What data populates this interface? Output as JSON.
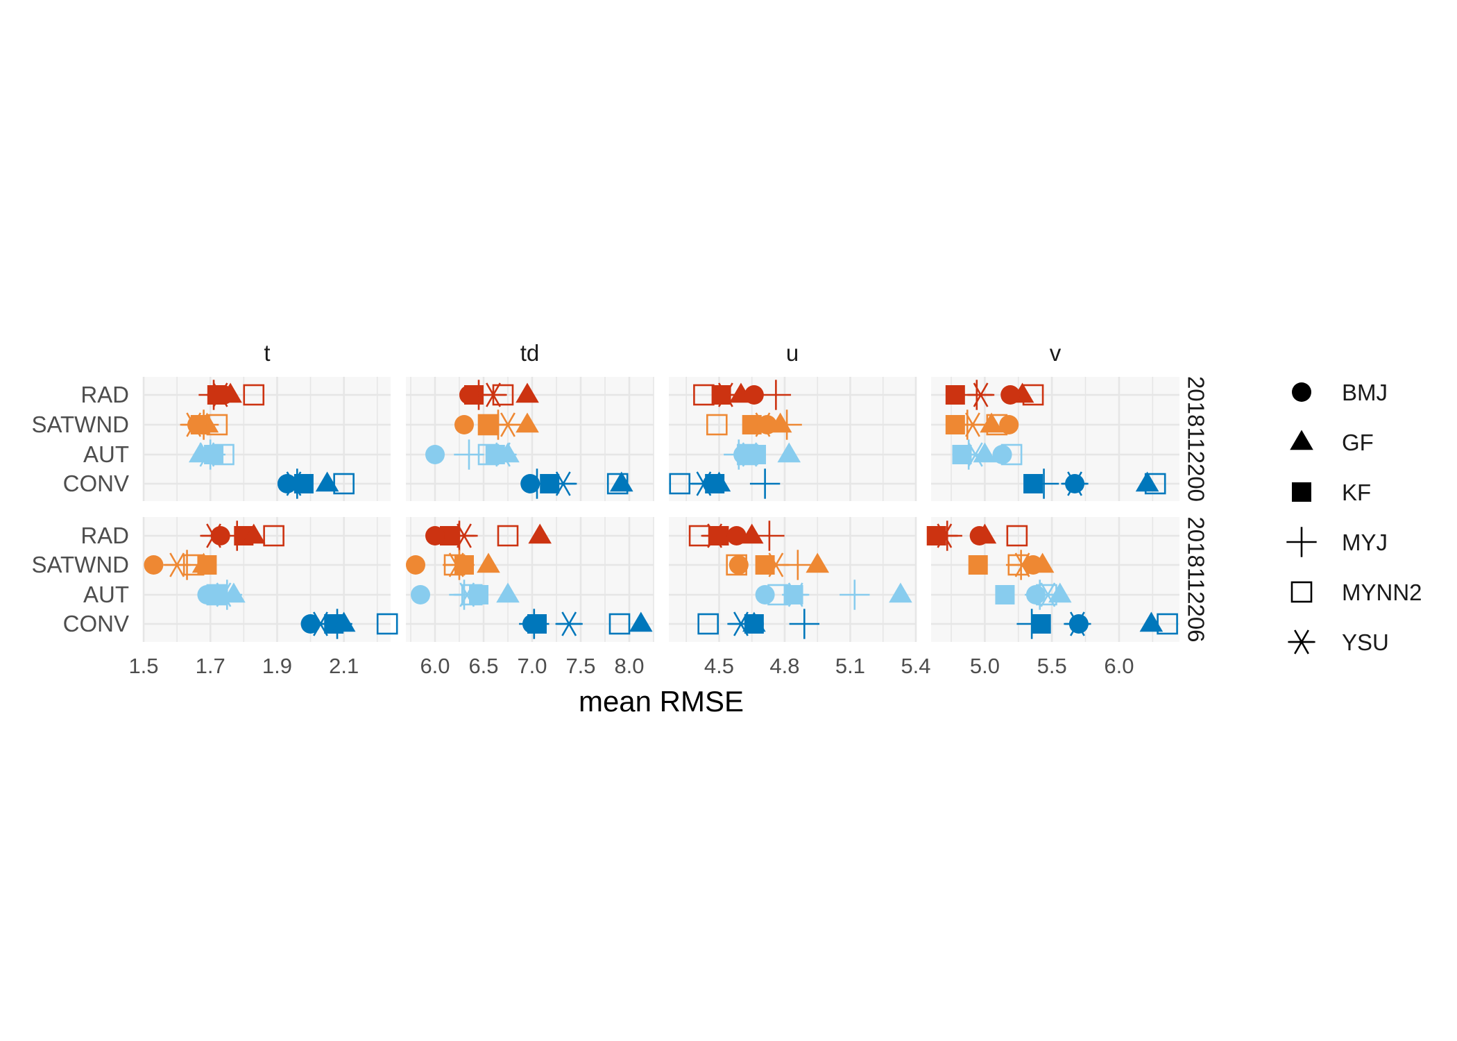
{
  "chart_data": {
    "type": "scatter",
    "xlabel": "mean RMSE",
    "ylabel": "",
    "title": "",
    "grid": true,
    "legend_position": "right",
    "categories": [
      "RAD",
      "SATWND",
      "AUT",
      "CONV"
    ],
    "category_colors": {
      "RAD": "#cc3311",
      "SATWND": "#ee8833",
      "AUT": "#88ccee",
      "CONV": "#0077bb"
    },
    "panel_background": "#f7f7f7",
    "grid_color": "#e6e6e6",
    "columns": [
      {
        "name": "t",
        "xlim": [
          1.5,
          2.24
        ],
        "ticks": [
          1.5,
          1.7,
          1.9,
          2.1
        ],
        "tick_labels": [
          "1.5",
          "1.7",
          "1.9",
          "2.1"
        ]
      },
      {
        "name": "td",
        "xlim": [
          5.7,
          8.25
        ],
        "ticks": [
          6.0,
          6.5,
          7.0,
          7.5,
          8.0
        ],
        "tick_labels": [
          "6.0",
          "6.5",
          "7.0",
          "7.5",
          "8.0"
        ]
      },
      {
        "name": "u",
        "xlim": [
          4.27,
          5.4
        ],
        "ticks": [
          4.5,
          4.8,
          5.1,
          5.4
        ],
        "tick_labels": [
          "4.5",
          "4.8",
          "5.1",
          "5.4"
        ]
      },
      {
        "name": "v",
        "xlim": [
          4.6,
          6.45
        ],
        "ticks": [
          5.0,
          5.5,
          6.0
        ],
        "tick_labels": [
          "5.0",
          "5.5",
          "6.0"
        ]
      }
    ],
    "rows": [
      {
        "name": "2018112200"
      },
      {
        "name": "2018112206"
      }
    ],
    "schemes": [
      "BMJ",
      "GF",
      "KF",
      "MYJ",
      "MYNN2",
      "YSU"
    ],
    "legend": [
      {
        "label": "BMJ",
        "shape": "filled-circle"
      },
      {
        "label": "GF",
        "shape": "filled-triangle"
      },
      {
        "label": "KF",
        "shape": "filled-square"
      },
      {
        "label": "MYJ",
        "shape": "plus"
      },
      {
        "label": "MYNN2",
        "shape": "open-square"
      },
      {
        "label": "YSU",
        "shape": "asterisk"
      }
    ],
    "panels": [
      {
        "column": "t",
        "row": "2018112200",
        "data": {
          "RAD": {
            "BMJ": 1.74,
            "GF": 1.76,
            "KF": 1.72,
            "MYJ": 1.71,
            "MYNN2": 1.83,
            "YSU": 1.73
          },
          "SATWND": {
            "BMJ": 1.66,
            "GF": 1.69,
            "KF": 1.67,
            "MYJ": 1.68,
            "MYNN2": 1.72,
            "YSU": 1.65
          },
          "AUT": {
            "BMJ": 1.71,
            "GF": 1.67,
            "KF": 1.71,
            "MYJ": 1.7,
            "MYNN2": 1.74,
            "YSU": 1.69
          },
          "CONV": {
            "BMJ": 1.93,
            "GF": 2.05,
            "KF": 1.98,
            "MYJ": 1.96,
            "MYNN2": 2.1,
            "YSU": 1.95
          }
        }
      },
      {
        "column": "td",
        "row": "2018112200",
        "data": {
          "RAD": {
            "BMJ": 6.35,
            "GF": 6.95,
            "KF": 6.4,
            "MYJ": 6.45,
            "MYNN2": 6.7,
            "YSU": 6.6
          },
          "SATWND": {
            "BMJ": 6.3,
            "GF": 6.95,
            "KF": 6.55,
            "MYJ": 6.65,
            "MYNN2": 6.55,
            "YSU": 6.75
          },
          "AUT": {
            "BMJ": 6.0,
            "GF": 6.75,
            "KF": 6.62,
            "MYJ": 6.35,
            "MYNN2": 6.55,
            "YSU": 6.7
          },
          "CONV": {
            "BMJ": 6.98,
            "GF": 7.92,
            "KF": 7.18,
            "MYJ": 7.05,
            "MYNN2": 7.88,
            "YSU": 7.32
          }
        }
      },
      {
        "column": "u",
        "row": "2018112200",
        "data": {
          "RAD": {
            "BMJ": 4.66,
            "GF": 4.6,
            "KF": 4.51,
            "MYJ": 4.76,
            "MYNN2": 4.43,
            "YSU": 4.53
          },
          "SATWND": {
            "BMJ": 4.72,
            "GF": 4.78,
            "KF": 4.65,
            "MYJ": 4.81,
            "MYNN2": 4.49,
            "YSU": 4.7
          },
          "AUT": {
            "BMJ": 4.61,
            "GF": 4.82,
            "KF": 4.67,
            "MYJ": 4.59,
            "MYNN2": 4.63,
            "YSU": 4.64
          },
          "CONV": {
            "BMJ": 4.47,
            "GF": 4.5,
            "KF": 4.48,
            "MYJ": 4.71,
            "MYNN2": 4.32,
            "YSU": 4.43
          }
        }
      },
      {
        "column": "v",
        "row": "2018112200",
        "data": {
          "RAD": {
            "BMJ": 5.19,
            "GF": 5.28,
            "KF": 4.78,
            "MYJ": 4.94,
            "MYNN2": 5.36,
            "YSU": 4.97
          },
          "SATWND": {
            "BMJ": 5.18,
            "GF": 5.05,
            "KF": 4.78,
            "MYJ": 4.87,
            "MYNN2": 5.09,
            "YSU": 4.91
          },
          "AUT": {
            "BMJ": 5.13,
            "GF": 5.0,
            "KF": 4.83,
            "MYJ": 4.88,
            "MYNN2": 5.2,
            "YSU": 4.93
          },
          "CONV": {
            "BMJ": 5.67,
            "GF": 6.21,
            "KF": 5.36,
            "MYJ": 5.44,
            "MYNN2": 6.27,
            "YSU": 5.67
          }
        }
      },
      {
        "column": "t",
        "row": "2018112206",
        "data": {
          "RAD": {
            "BMJ": 1.73,
            "GF": 1.83,
            "KF": 1.8,
            "MYJ": 1.78,
            "MYNN2": 1.89,
            "YSU": 1.71
          },
          "SATWND": {
            "BMJ": 1.53,
            "GF": 1.68,
            "KF": 1.69,
            "MYJ": 1.63,
            "MYNN2": 1.65,
            "YSU": 1.6
          },
          "AUT": {
            "BMJ": 1.69,
            "GF": 1.77,
            "KF": 1.72,
            "MYJ": 1.75,
            "MYNN2": 1.72,
            "YSU": 1.74
          },
          "CONV": {
            "BMJ": 2.0,
            "GF": 2.1,
            "KF": 2.07,
            "MYJ": 2.08,
            "MYNN2": 2.23,
            "YSU": 2.03
          }
        }
      },
      {
        "column": "td",
        "row": "2018112206",
        "data": {
          "RAD": {
            "BMJ": 6.0,
            "GF": 7.08,
            "KF": 6.15,
            "MYJ": 6.25,
            "MYNN2": 6.75,
            "YSU": 6.3
          },
          "SATWND": {
            "BMJ": 5.8,
            "GF": 6.55,
            "KF": 6.3,
            "MYJ": 6.25,
            "MYNN2": 6.2,
            "YSU": 6.22
          },
          "AUT": {
            "BMJ": 5.85,
            "GF": 6.75,
            "KF": 6.45,
            "MYJ": 6.3,
            "MYNN2": 6.38,
            "YSU": 6.33
          },
          "CONV": {
            "BMJ": 7.0,
            "GF": 8.12,
            "KF": 7.05,
            "MYJ": 7.02,
            "MYNN2": 7.9,
            "YSU": 7.38
          }
        }
      },
      {
        "column": "u",
        "row": "2018112206",
        "data": {
          "RAD": {
            "BMJ": 4.58,
            "GF": 4.65,
            "KF": 4.5,
            "MYJ": 4.73,
            "MYNN2": 4.41,
            "YSU": 4.48
          },
          "SATWND": {
            "BMJ": 4.59,
            "GF": 4.95,
            "KF": 4.71,
            "MYJ": 4.86,
            "MYNN2": 4.58,
            "YSU": 4.76
          },
          "AUT": {
            "BMJ": 4.71,
            "GF": 5.33,
            "KF": 4.84,
            "MYJ": 5.12,
            "MYNN2": 4.77,
            "YSU": 4.85
          },
          "CONV": {
            "BMJ": 4.66,
            "GF": 4.66,
            "KF": 4.66,
            "MYJ": 4.89,
            "MYNN2": 4.45,
            "YSU": 4.6
          }
        }
      },
      {
        "column": "v",
        "row": "2018112206",
        "data": {
          "RAD": {
            "BMJ": 4.96,
            "GF": 5.0,
            "KF": 4.64,
            "MYJ": 4.72,
            "MYNN2": 5.24,
            "YSU": 4.7
          },
          "SATWND": {
            "BMJ": 5.36,
            "GF": 5.43,
            "KF": 4.95,
            "MYJ": 5.27,
            "MYNN2": 5.25,
            "YSU": 5.28
          },
          "AUT": {
            "BMJ": 5.38,
            "GF": 5.56,
            "KF": 5.15,
            "MYJ": 5.41,
            "MYNN2": 5.46,
            "YSU": 5.47
          },
          "CONV": {
            "BMJ": 5.7,
            "GF": 6.24,
            "KF": 5.42,
            "MYJ": 5.35,
            "MYNN2": 6.36,
            "YSU": 5.69
          }
        }
      }
    ]
  }
}
